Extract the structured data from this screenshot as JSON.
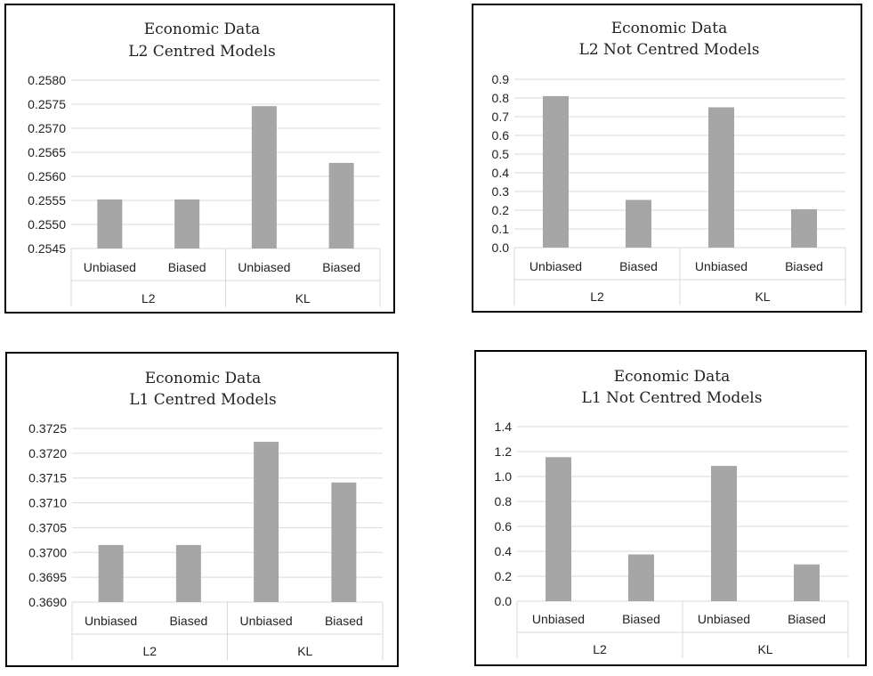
{
  "chart_data": [
    {
      "type": "bar",
      "title_line1": "Economic Data",
      "title_line2": "L2 Centred Models",
      "groups": [
        "L2",
        "KL"
      ],
      "categories": [
        "Unbiased",
        "Biased",
        "Unbiased",
        "Biased"
      ],
      "values": [
        0.25552,
        0.25552,
        0.25746,
        0.25628
      ],
      "ylim": [
        0.2545,
        0.258
      ],
      "yticks": [
        "0.2545",
        "0.2550",
        "0.2555",
        "0.2560",
        "0.2565",
        "0.2570",
        "0.2575",
        "0.2580"
      ],
      "bar_color": "#a6a6a6"
    },
    {
      "type": "bar",
      "title_line1": "Economic Data",
      "title_line2": "L2 Not Centred Models",
      "groups": [
        "L2",
        "KL"
      ],
      "categories": [
        "Unbiased",
        "Biased",
        "Unbiased",
        "Biased"
      ],
      "values": [
        0.81,
        0.255,
        0.75,
        0.205
      ],
      "ylim": [
        0,
        0.9
      ],
      "yticks": [
        "0.0",
        "0.1",
        "0.2",
        "0.3",
        "0.4",
        "0.5",
        "0.6",
        "0.7",
        "0.8",
        "0.9"
      ],
      "bar_color": "#a6a6a6"
    },
    {
      "type": "bar",
      "title_line1": "Economic Data",
      "title_line2": "L1 Centred Models",
      "groups": [
        "L2",
        "KL"
      ],
      "categories": [
        "Unbiased",
        "Biased",
        "Unbiased",
        "Biased"
      ],
      "values": [
        0.37015,
        0.37015,
        0.37223,
        0.37141
      ],
      "ylim": [
        0.369,
        0.3725
      ],
      "yticks": [
        "0.3690",
        "0.3695",
        "0.3700",
        "0.3705",
        "0.3710",
        "0.3715",
        "0.3720",
        "0.3725"
      ],
      "bar_color": "#a6a6a6"
    },
    {
      "type": "bar",
      "title_line1": "Economic Data",
      "title_line2": "L1 Not Centred Models",
      "groups": [
        "L2",
        "KL"
      ],
      "categories": [
        "Unbiased",
        "Biased",
        "Unbiased",
        "Biased"
      ],
      "values": [
        1.155,
        0.375,
        1.085,
        0.295
      ],
      "ylim": [
        0,
        1.4
      ],
      "yticks": [
        "0.0",
        "0.2",
        "0.4",
        "0.6",
        "0.8",
        "1.0",
        "1.2",
        "1.4"
      ],
      "bar_color": "#a6a6a6"
    }
  ]
}
